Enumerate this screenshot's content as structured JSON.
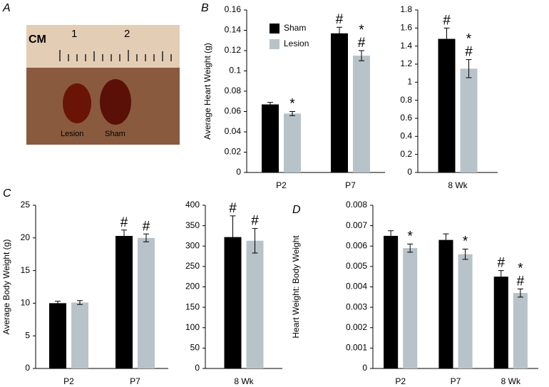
{
  "panel_labels": [
    "A",
    "B",
    "C",
    "D"
  ],
  "photo": {
    "ruler_unit": "CM",
    "ruler_marks": [
      "1",
      "2"
    ],
    "labels": [
      "Lesion",
      "Sham"
    ]
  },
  "chart_data": [
    {
      "type": "bar",
      "ylabel": "Average Heart Weight (g)",
      "categories": [
        "P2",
        "P7"
      ],
      "ylim": [
        0,
        0.16
      ],
      "yticks": [
        0,
        0.02,
        0.04,
        0.06,
        0.08,
        0.1,
        0.12,
        0.14,
        0.16
      ],
      "legend": "upper-left",
      "series": [
        {
          "name": "Sham",
          "color": "#000000",
          "values": [
            0.067,
            0.137
          ],
          "errors": [
            0.002,
            0.006
          ],
          "annotations": [
            null,
            [
              "#"
            ]
          ]
        },
        {
          "name": "Lesion",
          "color": "#b8c3c9",
          "values": [
            0.058,
            0.115
          ],
          "errors": [
            0.002,
            0.005
          ],
          "annotations": [
            [
              "*"
            ],
            [
              "*",
              "#"
            ]
          ]
        }
      ]
    },
    {
      "type": "bar",
      "categories": [
        "8 Wk"
      ],
      "ylim": [
        0,
        1.8
      ],
      "yticks": [
        0,
        0.2,
        0.4,
        0.6,
        0.8,
        1,
        1.2,
        1.4,
        1.6,
        1.8
      ],
      "series": [
        {
          "color": "#000000",
          "values": [
            1.48
          ],
          "errors": [
            0.12
          ],
          "annotations": [
            [
              "#"
            ]
          ]
        },
        {
          "color": "#b8c3c9",
          "values": [
            1.15
          ],
          "errors": [
            0.1
          ],
          "annotations": [
            [
              "*",
              "#"
            ]
          ]
        }
      ]
    },
    {
      "type": "bar",
      "ylabel": "Average Body Weight (g)",
      "categories": [
        "P2",
        "P7"
      ],
      "ylim": [
        0,
        25
      ],
      "yticks": [
        0,
        5,
        10,
        15,
        20,
        25
      ],
      "series": [
        {
          "color": "#000000",
          "values": [
            10,
            20.3
          ],
          "errors": [
            0.3,
            0.9
          ],
          "annotations": [
            null,
            [
              "#"
            ]
          ]
        },
        {
          "color": "#b8c3c9",
          "values": [
            10.1,
            20
          ],
          "errors": [
            0.3,
            0.6
          ],
          "annotations": [
            null,
            [
              "#"
            ]
          ]
        }
      ]
    },
    {
      "type": "bar",
      "categories": [
        "8 Wk"
      ],
      "ylim": [
        0,
        400
      ],
      "yticks": [
        0,
        50,
        100,
        150,
        200,
        250,
        300,
        350,
        400
      ],
      "series": [
        {
          "color": "#000000",
          "values": [
            322
          ],
          "errors": [
            52
          ],
          "annotations": [
            [
              "#"
            ]
          ]
        },
        {
          "color": "#b8c3c9",
          "values": [
            313
          ],
          "errors": [
            30
          ],
          "annotations": [
            [
              "#"
            ]
          ]
        }
      ]
    },
    {
      "type": "bar",
      "ylabel": "Heart Weight: Body Weight",
      "categories": [
        "P2",
        "P7",
        "8 Wk"
      ],
      "ylim": [
        0,
        0.008
      ],
      "yticks": [
        0,
        0.001,
        0.002,
        0.003,
        0.004,
        0.005,
        0.006,
        0.007,
        0.008
      ],
      "series": [
        {
          "color": "#000000",
          "values": [
            0.0065,
            0.0063,
            0.0045
          ],
          "errors": [
            0.00025,
            0.0003,
            0.0003
          ],
          "annotations": [
            null,
            null,
            [
              "#"
            ]
          ]
        },
        {
          "color": "#b8c3c9",
          "values": [
            0.0059,
            0.0056,
            0.0037
          ],
          "errors": [
            0.0002,
            0.00025,
            0.0002
          ],
          "annotations": [
            [
              "*"
            ],
            [
              "*"
            ],
            [
              "*",
              "#"
            ]
          ]
        }
      ]
    }
  ]
}
